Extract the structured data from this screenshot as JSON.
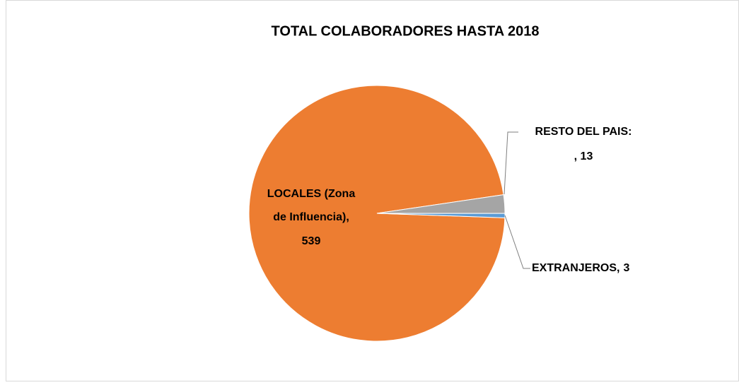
{
  "chart_data": {
    "type": "pie",
    "title": "TOTAL COLABORADORES HASTA 2018",
    "categories": [
      "LOCALES (Zona de Influencia),",
      "RESTO DEL PAIS:",
      "EXTRANJEROS,"
    ],
    "values": [
      539,
      13,
      3
    ],
    "value_labels": [
      "539",
      ", 13",
      "3"
    ],
    "colors": [
      "#ED7D31",
      "#A5A5A5",
      "#5B9BD5"
    ]
  }
}
